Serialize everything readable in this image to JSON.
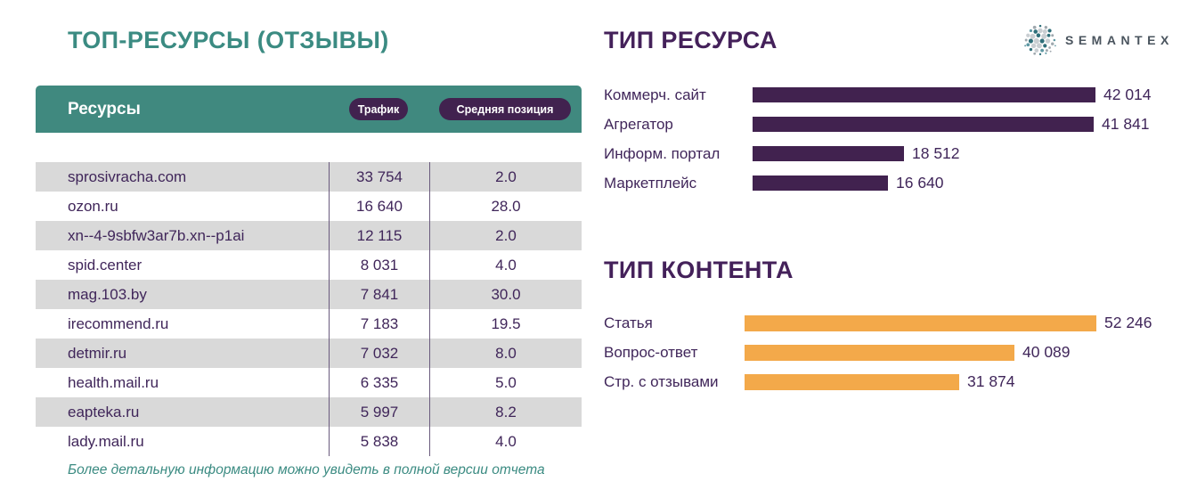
{
  "left": {
    "title": "ТОП-РЕСУРСЫ (ОТЗЫВЫ)",
    "table": {
      "header": {
        "resources": "Ресурсы",
        "traffic": "Трафик",
        "avg_position": "Средняя позиция"
      },
      "rows": [
        {
          "resource": "sprosivracha.com",
          "traffic": "33 754",
          "avg_position": "2.0"
        },
        {
          "resource": "ozon.ru",
          "traffic": "16 640",
          "avg_position": "28.0"
        },
        {
          "resource": "xn--4-9sbfw3ar7b.xn--p1ai",
          "traffic": "12 115",
          "avg_position": "2.0"
        },
        {
          "resource": "spid.center",
          "traffic": "8 031",
          "avg_position": "4.0"
        },
        {
          "resource": "mag.103.by",
          "traffic": "7 841",
          "avg_position": "30.0"
        },
        {
          "resource": "irecommend.ru",
          "traffic": "7 183",
          "avg_position": "19.5"
        },
        {
          "resource": "detmir.ru",
          "traffic": "7 032",
          "avg_position": "8.0"
        },
        {
          "resource": "health.mail.ru",
          "traffic": "6 335",
          "avg_position": "5.0"
        },
        {
          "resource": "eapteka.ru",
          "traffic": "5 997",
          "avg_position": "8.2"
        },
        {
          "resource": "lady.mail.ru",
          "traffic": "5 838",
          "avg_position": "4.0"
        }
      ]
    },
    "footnote": "Более детальную информацию можно увидеть в полной версии отчета"
  },
  "right": {
    "logo": {
      "text": "SEMANTEX",
      "icon": "dotted-sphere"
    }
  },
  "chart_data": [
    {
      "type": "bar",
      "orientation": "horizontal",
      "title": "ТИП РЕСУРСА",
      "categories": [
        "Коммерч. сайт",
        "Агрегатор",
        "Информ. портал",
        "Маркетплейс"
      ],
      "values": [
        42014,
        41841,
        18512,
        16640
      ],
      "value_labels": [
        "42 014",
        "41 841",
        "18 512",
        "16 640"
      ],
      "bar_color": "#41224f",
      "xlim": [
        0,
        42014
      ],
      "grid": false,
      "legend": false
    },
    {
      "type": "bar",
      "orientation": "horizontal",
      "title": "ТИП КОНТЕНТА",
      "categories": [
        "Статья",
        "Вопрос-ответ",
        "Стр. с отзывами"
      ],
      "values": [
        52246,
        40089,
        31874
      ],
      "value_labels": [
        "52 246",
        "40 089",
        "31 874"
      ],
      "bar_color": "#f3a94a",
      "xlim": [
        0,
        52246
      ],
      "grid": false,
      "legend": false
    }
  ],
  "colors": {
    "teal": "#40897f",
    "teal_text": "#3b8b82",
    "purple_title": "#44215a",
    "purple_dark": "#41224f",
    "text_purple": "#40265a",
    "orange": "#f3a94a",
    "row_gray": "#d9d9d9",
    "divider": "#6a5a7d"
  }
}
